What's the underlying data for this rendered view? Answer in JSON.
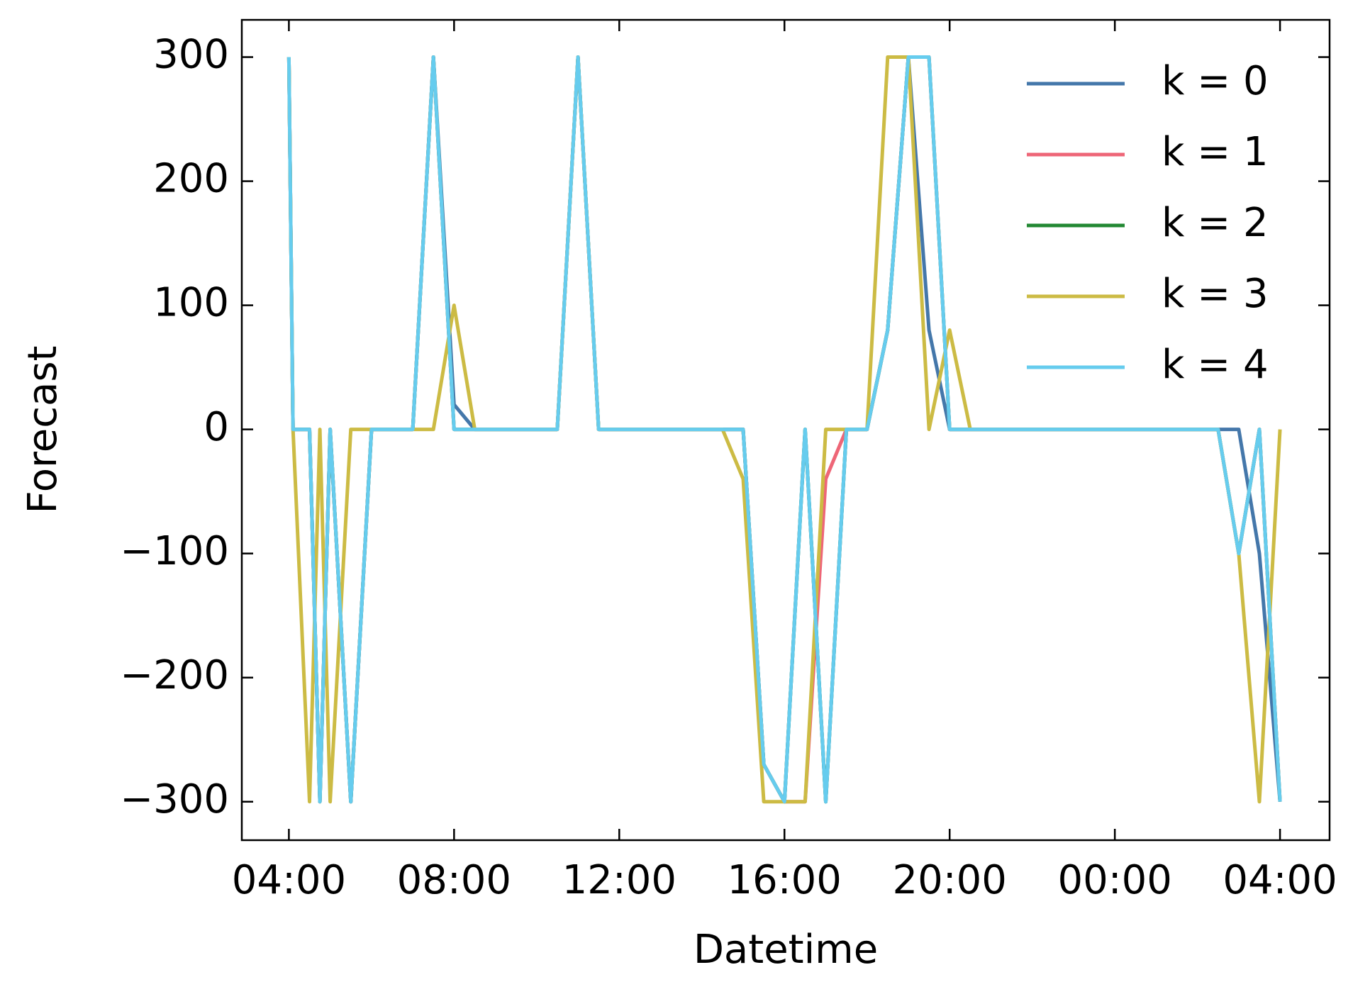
{
  "chart_data": {
    "type": "line",
    "x_label": "Datetime",
    "y_label": "Forecast",
    "x": [
      4,
      4.1,
      4.5,
      4.75,
      5,
      5.5,
      6,
      6.5,
      7,
      7.5,
      8,
      8.5,
      9,
      9.5,
      10,
      10.5,
      11,
      11.5,
      12,
      12.5,
      13,
      13.5,
      14,
      14.5,
      15,
      15.5,
      16,
      16.5,
      17,
      17.5,
      18,
      18.5,
      19,
      19.5,
      20,
      20.5,
      21,
      21.5,
      22,
      22.5,
      23,
      23.5,
      24,
      24.5,
      25,
      25.5,
      26,
      26.5,
      27,
      27.5,
      28
    ],
    "series": [
      {
        "name": "k = 0",
        "color": "#4477aa",
        "values": [
          300,
          0,
          0,
          -300,
          0,
          -300,
          0,
          0,
          0,
          300,
          20,
          0,
          0,
          0,
          0,
          0,
          300,
          0,
          0,
          0,
          0,
          0,
          0,
          0,
          0,
          -270,
          -300,
          0,
          -300,
          0,
          0,
          80,
          300,
          80,
          0,
          0,
          0,
          0,
          0,
          0,
          0,
          0,
          0,
          0,
          0,
          0,
          0,
          0,
          0,
          -100,
          -300
        ]
      },
      {
        "name": "k = 1",
        "color": "#ee6677",
        "values": [
          300,
          0,
          0,
          -300,
          0,
          -300,
          0,
          0,
          0,
          300,
          0,
          0,
          0,
          0,
          0,
          0,
          300,
          0,
          0,
          0,
          0,
          0,
          0,
          0,
          0,
          -270,
          -300,
          -300,
          -40,
          0,
          0,
          80,
          300,
          300,
          0,
          0,
          0,
          0,
          0,
          0,
          0,
          0,
          0,
          0,
          0,
          0,
          0,
          0,
          -100,
          0,
          -300
        ]
      },
      {
        "name": "k = 2",
        "color": "#228833",
        "values": [
          300,
          0,
          0,
          -300,
          0,
          -300,
          0,
          0,
          0,
          300,
          0,
          0,
          0,
          0,
          0,
          0,
          300,
          0,
          0,
          0,
          0,
          0,
          0,
          0,
          0,
          -270,
          -300,
          0,
          -300,
          0,
          0,
          80,
          300,
          300,
          0,
          0,
          0,
          0,
          0,
          0,
          0,
          0,
          0,
          0,
          0,
          0,
          0,
          0,
          -100,
          0,
          -300
        ]
      },
      {
        "name": "k = 3",
        "color": "#ccbb44",
        "values": [
          300,
          0,
          -300,
          0,
          -300,
          0,
          0,
          0,
          0,
          0,
          100,
          0,
          0,
          0,
          0,
          0,
          300,
          0,
          0,
          0,
          0,
          0,
          0,
          0,
          -40,
          -300,
          -300,
          -300,
          0,
          0,
          0,
          300,
          300,
          0,
          80,
          0,
          0,
          0,
          0,
          0,
          0,
          0,
          0,
          0,
          0,
          0,
          0,
          0,
          -100,
          -300,
          0
        ]
      },
      {
        "name": "k = 4",
        "color": "#66ccee",
        "values": [
          300,
          0,
          0,
          -300,
          0,
          -300,
          0,
          0,
          0,
          300,
          0,
          0,
          0,
          0,
          0,
          0,
          300,
          0,
          0,
          0,
          0,
          0,
          0,
          0,
          0,
          -270,
          -300,
          0,
          -300,
          0,
          0,
          80,
          300,
          300,
          0,
          0,
          0,
          0,
          0,
          0,
          0,
          0,
          0,
          0,
          0,
          0,
          0,
          0,
          -100,
          0,
          -300
        ]
      }
    ],
    "xlim": [
      2.86,
      29.2
    ],
    "xticks": [
      {
        "value": 4,
        "label": "04:00"
      },
      {
        "value": 8,
        "label": "08:00"
      },
      {
        "value": 12,
        "label": "12:00"
      },
      {
        "value": 16,
        "label": "16:00"
      },
      {
        "value": 20,
        "label": "20:00"
      },
      {
        "value": 24,
        "label": "00:00"
      },
      {
        "value": 28,
        "label": "04:00"
      }
    ],
    "ylim": [
      -331,
      330
    ],
    "yticks": [
      {
        "value": -300,
        "label": "−300"
      },
      {
        "value": -200,
        "label": "−200"
      },
      {
        "value": -100,
        "label": "−100"
      },
      0,
      100,
      200,
      300
    ],
    "legend": "upper right",
    "grid": false
  }
}
